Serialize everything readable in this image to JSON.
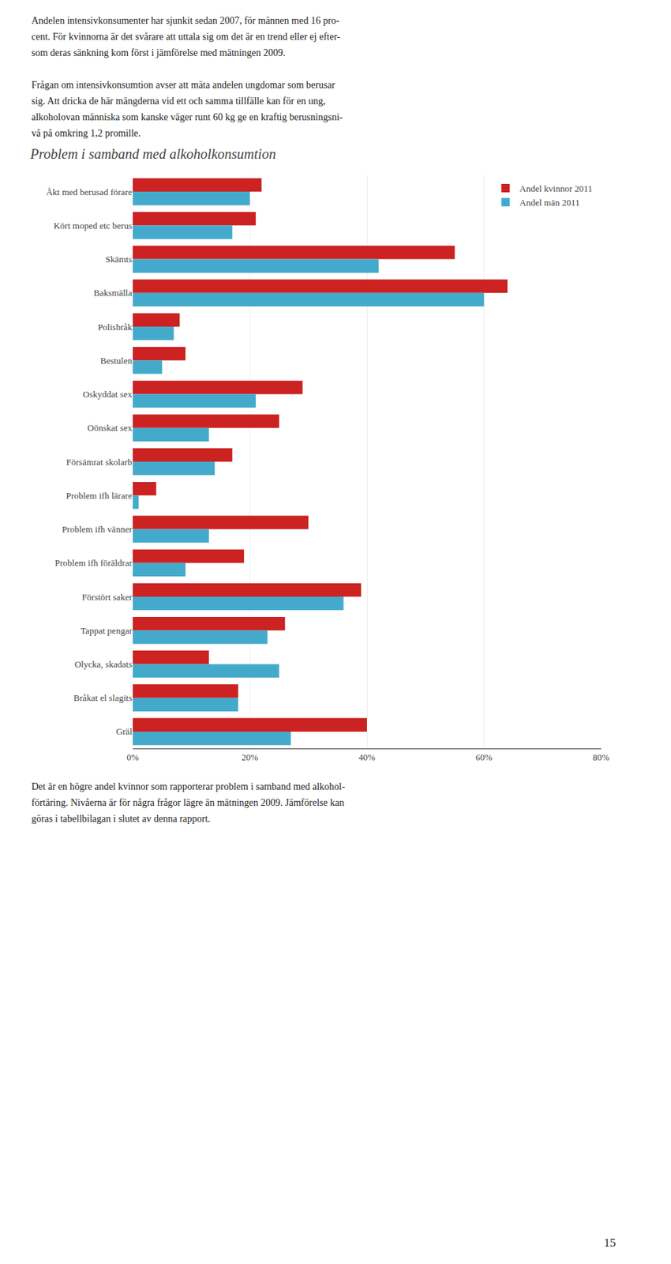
{
  "chart_data": {
    "type": "bar",
    "orientation": "horizontal",
    "title": "Problem i samband med alkoholkonsumtion",
    "categories": [
      "Åkt med berusad förare",
      "Kört moped etc berus",
      "Skämts",
      "Baksmälla",
      "Polisbråk",
      "Bestulen",
      "Oskyddat sex",
      "Oönskat sex",
      "Försämrat skolarb",
      "Problem ifh lärare",
      "Problem ifh vänner",
      "Problem ifh föräldrar",
      "Förstört saker",
      "Tappat pengar",
      "Olycka, skadats",
      "Bråkat el slagits",
      "Gräl"
    ],
    "series": [
      {
        "name": "Andel kvinnor 2011",
        "color": "#CC2222",
        "values": [
          22,
          21,
          55,
          64,
          8,
          9,
          29,
          25,
          17,
          4,
          30,
          19,
          39,
          26,
          13,
          18,
          40
        ]
      },
      {
        "name": "Andel män 2011",
        "color": "#44AACC",
        "values": [
          20,
          17,
          42,
          60,
          7,
          5,
          21,
          13,
          14,
          1,
          13,
          9,
          36,
          23,
          25,
          18,
          27
        ]
      }
    ],
    "xlim": [
      0,
      80
    ],
    "xticks": [
      {
        "value": 0,
        "label": "0%"
      },
      {
        "value": 20,
        "label": "20%"
      },
      {
        "value": 40,
        "label": "40%"
      },
      {
        "value": 60,
        "label": "60%"
      },
      {
        "value": 80,
        "label": "80%"
      }
    ],
    "grid": true,
    "legend": "upper right",
    "annotations": [
      "Andelen intensivkonsumenter har sjunkit sedan 2007, för männen med 16 pro-",
      "cent. För kvinnorna är det svårare att uttala sig om det är en trend eller ej efter-",
      "som deras sänkning kom först i jämförelse med mätningen 2009.",
      "Frågan om intensivkonsumtion avser att mäta andelen ungdomar som berusar",
      "sig. Att dricka de här mängderna vid ett och samma tillfälle kan för en ung,",
      "alkoholovan människa som kanske väger runt 60 kg ge en kraftig berusningsni-",
      "vå på omkring 1,2 promille.",
      "Det är en högre andel kvinnor som rapporterar problem i samband med alkohol-",
      "förtäring. Nivåerna är för några frågor lägre än mätningen 2009. Jämförelse kan",
      "göras i tabellbilagan i slutet av denna rapport.",
      "15"
    ]
  }
}
